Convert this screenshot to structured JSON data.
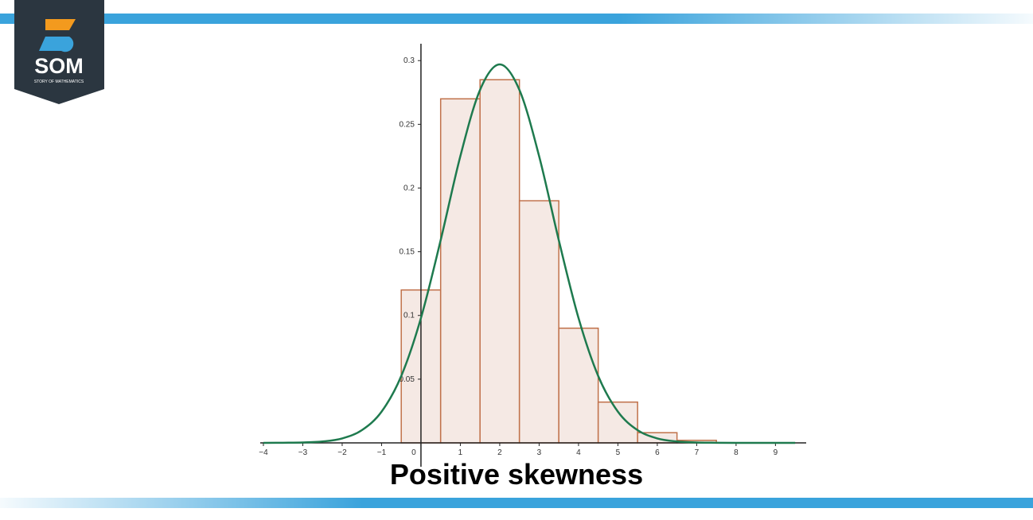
{
  "logo": {
    "text": "SOM",
    "subtext": "STORY OF MATHEMATICS"
  },
  "chart_data": {
    "type": "histogram",
    "title": "Positive skewness",
    "bins": [
      -0.5,
      0.5,
      1.5,
      2.5,
      3.5,
      4.5,
      5.5,
      6.5,
      7.5
    ],
    "values": [
      0.12,
      0.27,
      0.285,
      0.19,
      0.09,
      0.032,
      0.008,
      0.002
    ],
    "color": "#f5e9e4",
    "edgecolor": "#c0714a",
    "curve": {
      "color": "#1e7a4e",
      "x": [
        -4,
        -3.5,
        -3,
        -2.5,
        -2,
        -1.5,
        -1,
        -0.5,
        0,
        0.5,
        1,
        1.5,
        2,
        2.5,
        3,
        3.5,
        4,
        4.5,
        5,
        5.5,
        6,
        6.5,
        7,
        7.5,
        8,
        8.5,
        9,
        9.5
      ],
      "values": [
        0,
        0.0001,
        0.0003,
        0.0011,
        0.0035,
        0.01,
        0.0245,
        0.0525,
        0.098,
        0.159,
        0.225,
        0.277,
        0.297,
        0.277,
        0.225,
        0.159,
        0.098,
        0.0525,
        0.0245,
        0.01,
        0.0035,
        0.0011,
        0.0003,
        0.0001,
        0,
        0,
        0,
        0
      ]
    },
    "xlim": [
      -4.08,
      9.78
    ],
    "ylim": [
      0,
      0.312
    ],
    "xticks": [
      {
        "value": -4,
        "label": "−4"
      },
      {
        "value": -3,
        "label": "−3"
      },
      {
        "value": -2,
        "label": "−2"
      },
      {
        "value": -1,
        "label": "−1"
      },
      0,
      1,
      2,
      3,
      4,
      5,
      6,
      7,
      8,
      9
    ],
    "yticks": [
      0.05,
      0.1,
      0.15,
      0.2,
      0.25,
      0.3
    ]
  }
}
